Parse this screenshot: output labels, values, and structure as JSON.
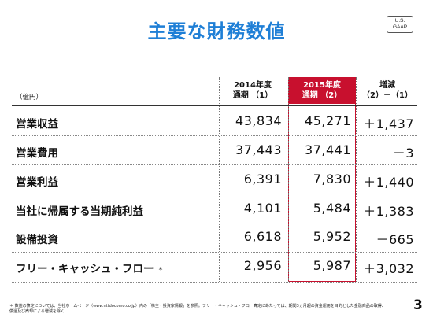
{
  "title": "主要な財務数値",
  "badge": {
    "line1": "U.S.",
    "line2": "GAAP"
  },
  "unit": "（億円）",
  "columns": [
    {
      "line1": "2014年度",
      "line2": "通期 （1）"
    },
    {
      "line1": "2015年度",
      "line2": "通期 （2）"
    },
    {
      "line1": "増減",
      "line2": "（2）－（1）"
    }
  ],
  "rows": [
    {
      "label": "営業収益",
      "v2014": "43,834",
      "v2015": "45,271",
      "diff": "＋1,437"
    },
    {
      "label": "営業費用",
      "v2014": "37,443",
      "v2015": "37,441",
      "diff": "－3"
    },
    {
      "label": "営業利益",
      "v2014": "6,391",
      "v2015": "7,830",
      "diff": "＋1,440"
    },
    {
      "label": "当社に帰属する当期純利益",
      "v2014": "4,101",
      "v2015": "5,484",
      "diff": "＋1,383"
    },
    {
      "label": "設備投資",
      "v2014": "6,618",
      "v2015": "5,952",
      "diff": "－665"
    },
    {
      "label": "フリー・キャッシュ・フロー",
      "asterisk": "*",
      "v2014": "2,956",
      "v2015": "5,987",
      "diff": "＋3,032"
    }
  ],
  "footnote": {
    "line1": "＊ 数値の算定については、当社ホームページ（www.nttdocomo.co.jp）内の「株主・投資家情報」を参照。フリー・キャッシュ・フロー算定にあたっては、期間3ヵ月超の資金運用を目的とした金融商品の取得、",
    "line2": "償還及び売却による増減を除く"
  },
  "page_number": "3"
}
